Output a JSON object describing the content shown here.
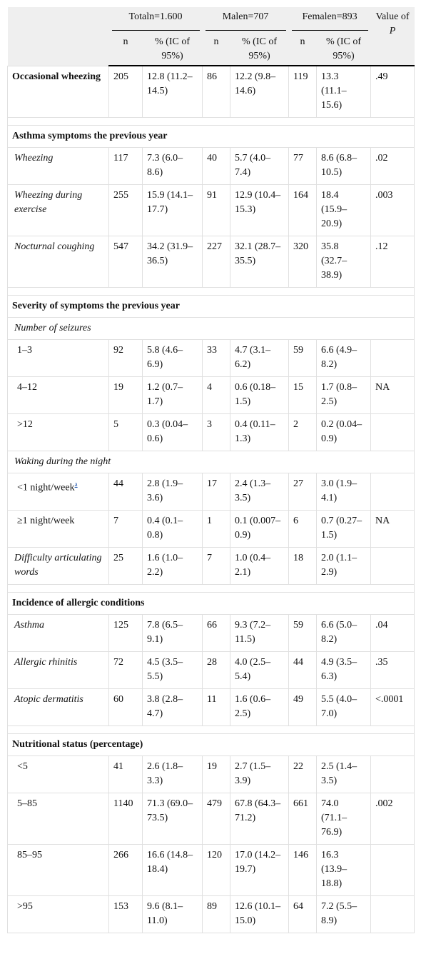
{
  "table": {
    "header": {
      "groups": [
        "Totaln=1.600",
        "Malen=707",
        "Femalen=893"
      ],
      "p": [
        "Value of",
        "P"
      ],
      "sub": [
        "n",
        "% (IC of 95%)",
        "n",
        "% (IC of 95%)",
        "n",
        "% (IC of 95%)"
      ]
    },
    "rows": [
      {
        "kind": "row",
        "style": "bold",
        "label": "Occasional wheezing",
        "cells": [
          205,
          "12.8 (11.2–14.5)",
          86,
          "12.2 (9.8–14.6)",
          119,
          "13.3 (11.1–15.6)",
          ".49"
        ]
      },
      {
        "kind": "section",
        "label": "Asthma symptoms the previous year"
      },
      {
        "kind": "row",
        "style": "italic",
        "label": "Wheezing",
        "cells": [
          117,
          "7.3 (6.0–8.6)",
          40,
          "5.7 (4.0–7.4)",
          77,
          "8.6 (6.8–10.5)",
          ".02"
        ]
      },
      {
        "kind": "row",
        "style": "italic",
        "label": "Wheezing during exercise",
        "cells": [
          255,
          "15.9 (14.1–17.7)",
          91,
          "12.9 (10.4–15.3)",
          164,
          "18.4 (15.9–20.9)",
          ".003"
        ]
      },
      {
        "kind": "row",
        "style": "italic",
        "label": "Nocturnal coughing",
        "cells": [
          547,
          "34.2 (31.9–36.5)",
          227,
          "32.1 (28.7–35.5)",
          320,
          "35.8 (32.7–38.9)",
          ".12"
        ]
      },
      {
        "kind": "section",
        "label": "Severity of symptoms the previous year"
      },
      {
        "kind": "sub",
        "label": "Number of seizures"
      },
      {
        "kind": "row",
        "style": "plain",
        "label": "1–3",
        "cells": [
          92,
          "5.8 (4.6–6.9)",
          33,
          "4.7 (3.1–6.2)",
          59,
          "6.6 (4.9–8.2)",
          null
        ]
      },
      {
        "kind": "row",
        "style": "plain",
        "label": "4–12",
        "cells": [
          19,
          "1.2 (0.7–1.7)",
          4,
          "0.6 (0.18–1.5)",
          15,
          "1.7 (0.8–2.5)",
          "NA"
        ]
      },
      {
        "kind": "row",
        "style": "plain",
        "label": ">12",
        "cells": [
          5,
          "0.3 (0.04–0.6)",
          3,
          "0.4 (0.11–1.3)",
          2,
          "0.2 (0.04–0.9)",
          null
        ]
      },
      {
        "kind": "sub",
        "label": "Waking during the night"
      },
      {
        "kind": "row",
        "style": "plain",
        "label": "<1 night/week",
        "sup": "a",
        "cells": [
          44,
          "2.8 (1.9–3.6)",
          17,
          "2.4 (1.3–3.5)",
          27,
          "3.0 (1.9–4.1)",
          null
        ]
      },
      {
        "kind": "row",
        "style": "plain",
        "label": "≥1 night/week",
        "cells": [
          7,
          "0.4 (0.1–0.8)",
          1,
          "0.1 (0.007–0.9)",
          6,
          "0.7 (0.27–1.5)",
          "NA"
        ]
      },
      {
        "kind": "row",
        "style": "italic",
        "label": "Difficulty articulating words",
        "cells": [
          25,
          "1.6 (1.0–2.2)",
          7,
          "1.0 (0.4–2.1)",
          18,
          "2.0 (1.1–2.9)",
          null
        ]
      },
      {
        "kind": "section",
        "label": "Incidence of allergic conditions"
      },
      {
        "kind": "row",
        "style": "italic",
        "label": "Asthma",
        "cells": [
          125,
          "7.8 (6.5–9.1)",
          66,
          "9.3 (7.2–11.5)",
          59,
          "6.6 (5.0–8.2)",
          ".04"
        ]
      },
      {
        "kind": "row",
        "style": "italic",
        "label": "Allergic rhinitis",
        "cells": [
          72,
          "4.5 (3.5–5.5)",
          28,
          "4.0 (2.5–5.4)",
          44,
          "4.9 (3.5–6.3)",
          ".35"
        ]
      },
      {
        "kind": "row",
        "style": "italic",
        "label": "Atopic dermatitis",
        "cells": [
          60,
          "3.8 (2.8–4.7)",
          11,
          "1.6 (0.6–2.5)",
          49,
          "5.5 (4.0–7.0)",
          "<.0001"
        ]
      },
      {
        "kind": "section",
        "label": "Nutritional status (percentage)"
      },
      {
        "kind": "row",
        "style": "plain",
        "label": "<5",
        "cells": [
          41,
          "2.6 (1.8–3.3)",
          19,
          "2.7 (1.5–3.9)",
          22,
          "2.5 (1.4–3.5)",
          null
        ]
      },
      {
        "kind": "row",
        "style": "plain",
        "label": "5–85",
        "cells": [
          1140,
          "71.3 (69.0–73.5)",
          479,
          "67.8 (64.3–71.2)",
          661,
          "74.0 (71.1–76.9)",
          ".002"
        ]
      },
      {
        "kind": "row",
        "style": "plain",
        "label": "85–95",
        "cells": [
          266,
          "16.6 (14.8–18.4)",
          120,
          "17.0 (14.2–19.7)",
          146,
          "16.3 (13.9–18.8)",
          null
        ]
      },
      {
        "kind": "row",
        "style": "plain",
        "label": ">95",
        "cells": [
          153,
          "9.6 (8.1–11.0)",
          89,
          "12.6 (10.1–15.0)",
          64,
          "7.2 (5.5–8.9)",
          null
        ]
      }
    ]
  }
}
